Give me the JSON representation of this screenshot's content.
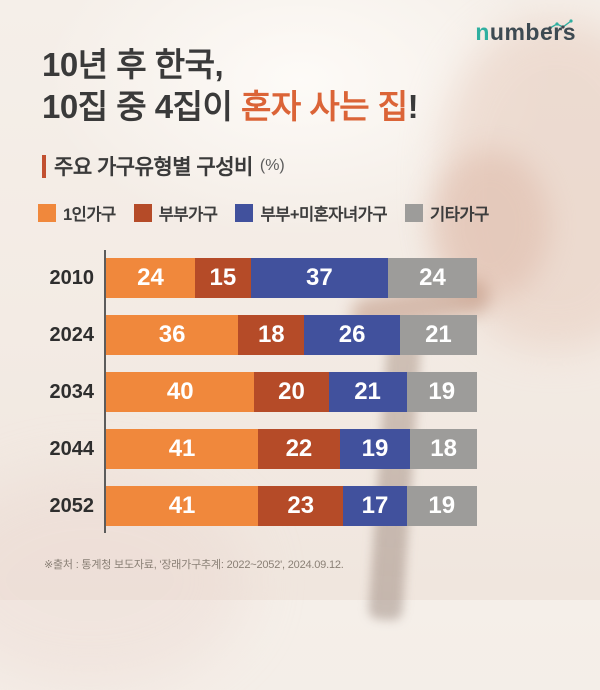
{
  "brand": {
    "logo_prefix": "n",
    "logo_rest": "umbers"
  },
  "title": {
    "line1": "10년 후 한국,",
    "line2_prefix": "10집 중 4집이 ",
    "line2_highlight": "혼자 사는 집",
    "line2_suffix": "!"
  },
  "subtitle": {
    "label": "주요 가구유형별 구성비",
    "unit": "(%)"
  },
  "legend": [
    {
      "label": "1인가구",
      "color": "#F0883C"
    },
    {
      "label": "부부가구",
      "color": "#B54B28"
    },
    {
      "label": "부부+미혼자녀가구",
      "color": "#41519D"
    },
    {
      "label": "기타가구",
      "color": "#9D9C9A"
    }
  ],
  "chart_data": {
    "type": "bar",
    "variant": "horizontal-stacked",
    "unit": "%",
    "title": "주요 가구유형별 구성비 (%)",
    "categories": [
      "2010",
      "2024",
      "2034",
      "2044",
      "2052"
    ],
    "series": [
      {
        "name": "1인가구",
        "color": "#F0883C",
        "values": [
          24,
          36,
          40,
          41,
          41
        ]
      },
      {
        "name": "부부가구",
        "color": "#B54B28",
        "values": [
          15,
          18,
          20,
          22,
          23
        ]
      },
      {
        "name": "부부+미혼자녀가구",
        "color": "#41519D",
        "values": [
          37,
          26,
          21,
          19,
          17
        ]
      },
      {
        "name": "기타가구",
        "color": "#9D9C9A",
        "values": [
          24,
          21,
          19,
          18,
          19
        ]
      }
    ],
    "xlim": [
      0,
      100
    ],
    "value_labels": true,
    "grid": false,
    "legend_position": "top"
  },
  "footer": {
    "source": "※출처 : 통계청 보도자료, '장래가구추계: 2022~2052', 2024.09.12."
  },
  "colors": {
    "background": "#F3EBE4",
    "headline_dark": "#3A3A3A",
    "headline_highlight": "#DB6437",
    "accent_bar": "#C25030",
    "axis": "#5C5C5C",
    "logo_teal": "#2FAFA0",
    "logo_slate": "#3D4A52",
    "footer_text": "#8A8076"
  }
}
